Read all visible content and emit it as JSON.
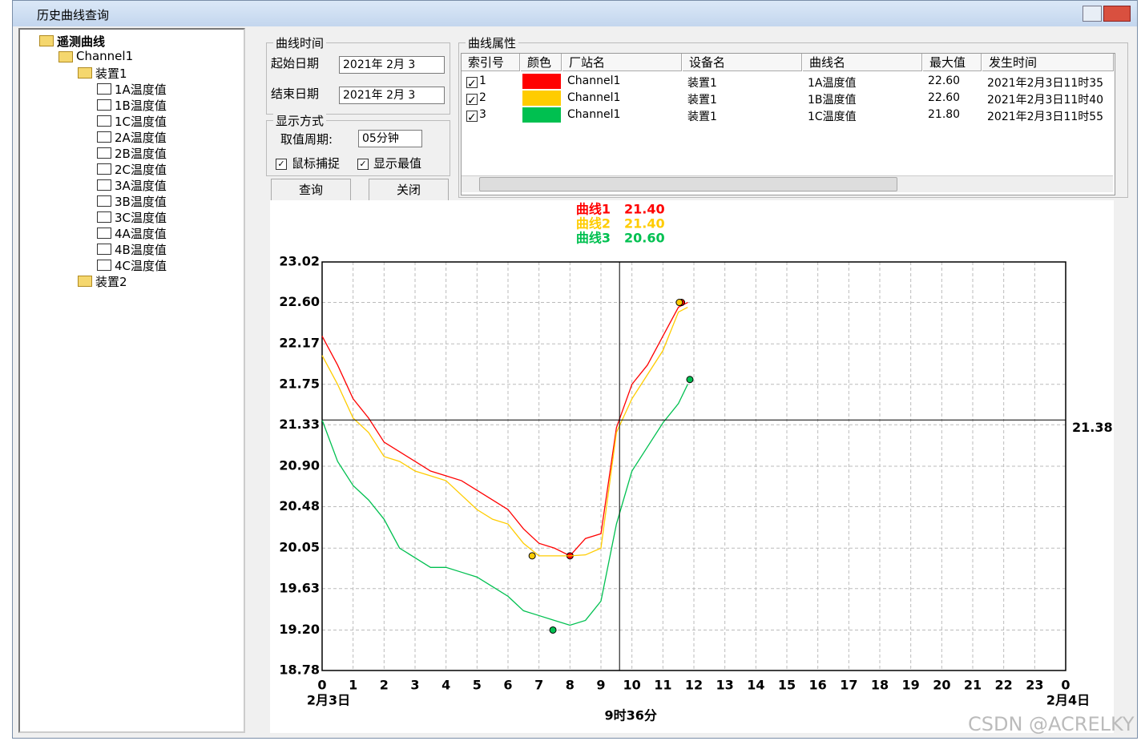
{
  "window": {
    "title": "历史曲线查询"
  },
  "tree": {
    "nodes": [
      "遥测曲线",
      "Channel1",
      "装置1",
      "1A温度值",
      "1B温度值",
      "1C温度值",
      "2A温度值",
      "2B温度值",
      "2C温度值",
      "3A温度值",
      "3B温度值",
      "3C温度值",
      "4A温度值",
      "4B温度值",
      "4C温度值",
      "装置2"
    ]
  },
  "time_group": {
    "title": "曲线时间",
    "start_label": "起始日期",
    "start_value": "2021年  2月  3",
    "end_label": "结束日期",
    "end_value": "2021年  2月  3"
  },
  "display_group": {
    "title": "显示方式",
    "period_label": "取值周期:",
    "period_value": "05分钟",
    "mouse_capture": "鼠标捕捉",
    "show_extreme": "显示最值"
  },
  "buttons": {
    "query": "查询",
    "close": "关闭"
  },
  "properties": {
    "title": "曲线属性",
    "columns": [
      "索引号",
      "颜色",
      "厂站名",
      "设备名",
      "曲线名",
      "最大值",
      "发生时间"
    ],
    "rows": [
      [
        "1",
        "Channel1",
        "装置1",
        "1A温度值",
        "22.60",
        "2021年2月3日11时35"
      ],
      [
        "2",
        "Channel1",
        "装置1",
        "1B温度值",
        "22.60",
        "2021年2月3日11时40"
      ],
      [
        "3",
        "Channel1",
        "装置1",
        "1C温度值",
        "21.80",
        "2021年2月3日11时55"
      ]
    ]
  },
  "watermark": "CSDN @ACRELKY",
  "chart_data": {
    "type": "line",
    "grid": true,
    "x": [
      0,
      0.5,
      1,
      1.5,
      2,
      2.5,
      3,
      3.5,
      4,
      4.5,
      5,
      5.5,
      6,
      6.5,
      7,
      7.5,
      8,
      8.5,
      9,
      9.5,
      10,
      10.5,
      11,
      11.5,
      11.8
    ],
    "series": [
      {
        "name": "曲线1",
        "color": "#ff0000",
        "values": [
          22.25,
          21.95,
          21.6,
          21.4,
          21.15,
          21.05,
          20.95,
          20.85,
          20.8,
          20.75,
          20.65,
          20.55,
          20.45,
          20.25,
          20.1,
          20.05,
          19.97,
          20.15,
          20.2,
          21.3,
          21.75,
          21.95,
          22.25,
          22.55,
          22.6
        ],
        "min": {
          "x": 8,
          "y": 19.97
        },
        "max": {
          "x": 11.6,
          "y": 22.6
        }
      },
      {
        "name": "曲线2",
        "color": "#ffcc00",
        "values": [
          22.05,
          21.75,
          21.4,
          21.25,
          21.0,
          20.95,
          20.85,
          20.8,
          20.75,
          20.6,
          20.45,
          20.35,
          20.3,
          20.1,
          19.97,
          19.97,
          19.97,
          19.98,
          20.05,
          21.25,
          21.6,
          21.85,
          22.1,
          22.5,
          22.55
        ],
        "min": {
          "x": 6.78,
          "y": 19.97
        },
        "max": {
          "x": 11.53,
          "y": 22.6
        }
      },
      {
        "name": "曲线3",
        "color": "#00c050",
        "values": [
          21.38,
          20.95,
          20.7,
          20.55,
          20.35,
          20.05,
          19.95,
          19.85,
          19.85,
          19.8,
          19.75,
          19.65,
          19.55,
          19.4,
          19.35,
          19.3,
          19.25,
          19.3,
          19.5,
          20.3,
          20.85,
          21.1,
          21.35,
          21.55,
          21.75
        ],
        "min": {
          "x": 7.45,
          "y": 19.2
        },
        "max": {
          "x": 11.87,
          "y": 21.8
        }
      }
    ],
    "xlim": [
      0,
      24
    ],
    "xticks": [
      0,
      1,
      2,
      3,
      4,
      5,
      6,
      7,
      8,
      9,
      10,
      11,
      12,
      13,
      14,
      15,
      16,
      17,
      18,
      19,
      20,
      21,
      22,
      23,
      {
        "value": 24,
        "label": "0"
      }
    ],
    "ylim": [
      18.78,
      23.02
    ],
    "yticks": [
      18.78,
      {
        "value": 19.2,
        "label": "19.20"
      },
      19.63,
      20.05,
      20.48,
      {
        "value": 20.9,
        "label": "20.90"
      },
      21.33,
      21.75,
      22.17,
      {
        "value": 22.6,
        "label": "22.60"
      },
      23.02
    ],
    "start_date_label": "2月3日",
    "end_date_label": "2月4日",
    "cursor": {
      "x": 9.6,
      "x_label": "9时36分",
      "y": 21.38,
      "readings": [
        {
          "value": 21.4,
          "label": "21.40"
        },
        {
          "value": 21.4,
          "label": "21.40"
        },
        {
          "value": 20.6,
          "label": "20.60"
        }
      ]
    }
  }
}
